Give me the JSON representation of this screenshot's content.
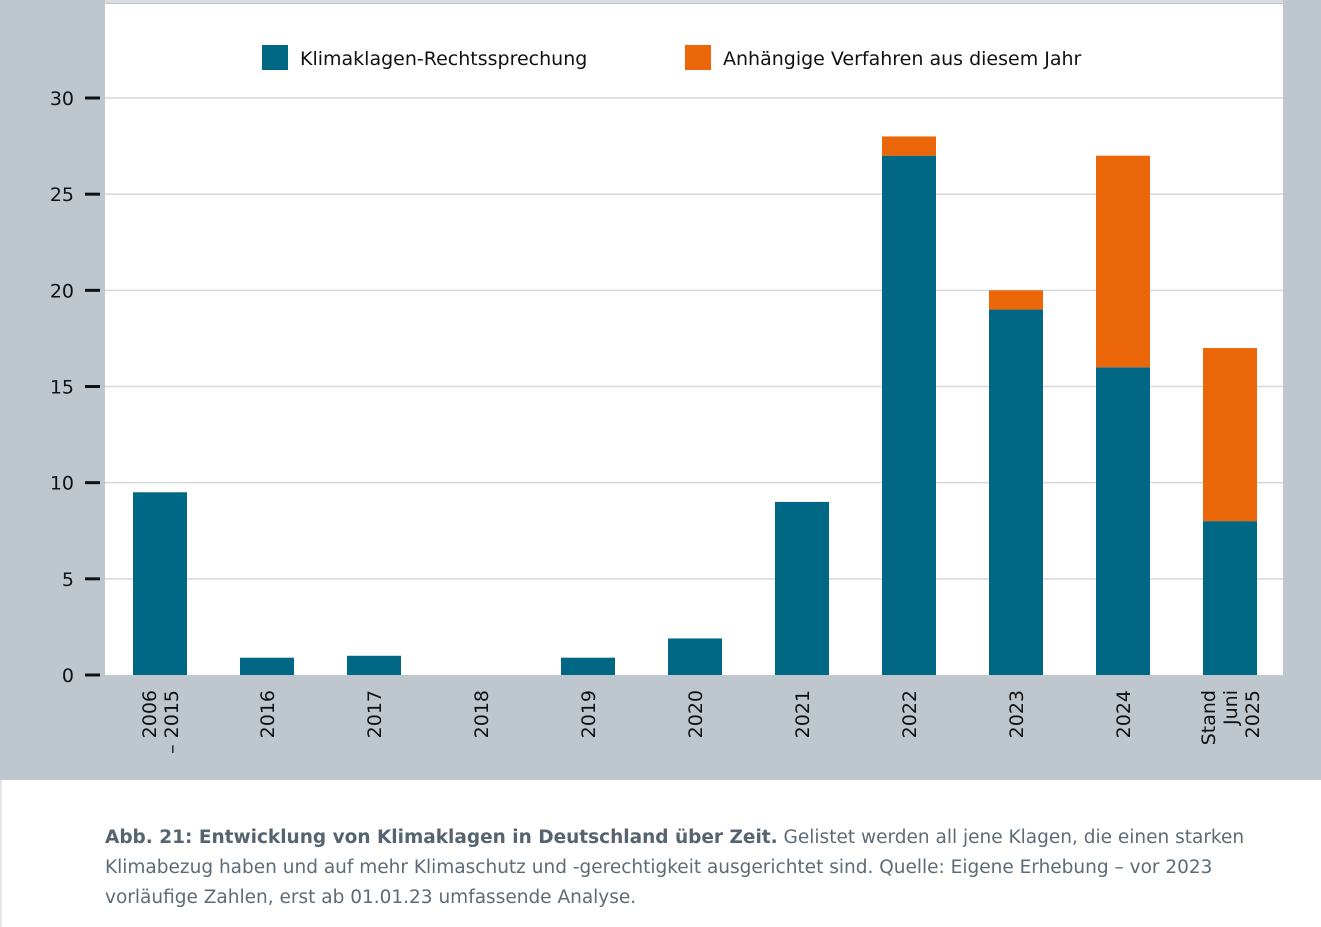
{
  "chart_data": {
    "type": "bar",
    "stacked": true,
    "title": "",
    "xlabel": "",
    "ylabel": "",
    "ylim": [
      0,
      30
    ],
    "yticks": [
      0,
      5,
      10,
      15,
      20,
      25,
      30
    ],
    "grid": true,
    "legend_position": "top",
    "categories": [
      [
        "2006",
        "– 2015"
      ],
      [
        "2016"
      ],
      [
        "2017"
      ],
      [
        "2018"
      ],
      [
        "2019"
      ],
      [
        "2020"
      ],
      [
        "2021"
      ],
      [
        "2022"
      ],
      [
        "2023"
      ],
      [
        "2024"
      ],
      [
        "Stand",
        "Juni",
        "2025"
      ]
    ],
    "series": [
      {
        "name": "Klimaklagen-Rechtssprechung",
        "color": "#006784",
        "values": [
          9.5,
          0.9,
          1,
          0,
          0.9,
          1.9,
          9,
          27,
          19,
          16,
          8
        ]
      },
      {
        "name": "Anhängige Verfahren aus diesem Jahr",
        "color": "#eb6608",
        "values": [
          0,
          0,
          0,
          0,
          0,
          0,
          0,
          1,
          1,
          11,
          9
        ]
      }
    ]
  },
  "caption": {
    "bold": "Abb. 21: Entwicklung von Klimaklagen in Deutschland über Zeit.",
    "text": " Gelistet werden all jene Klagen, die einen starken Klimabezug haben und auf mehr Klimaschutz und -gerechtigkeit ausgerichtet sind. Quelle: Eigene Erhebung – vor 2023 vorläufige Zahlen, erst ab 01.01.23 umfassende Analyse."
  }
}
